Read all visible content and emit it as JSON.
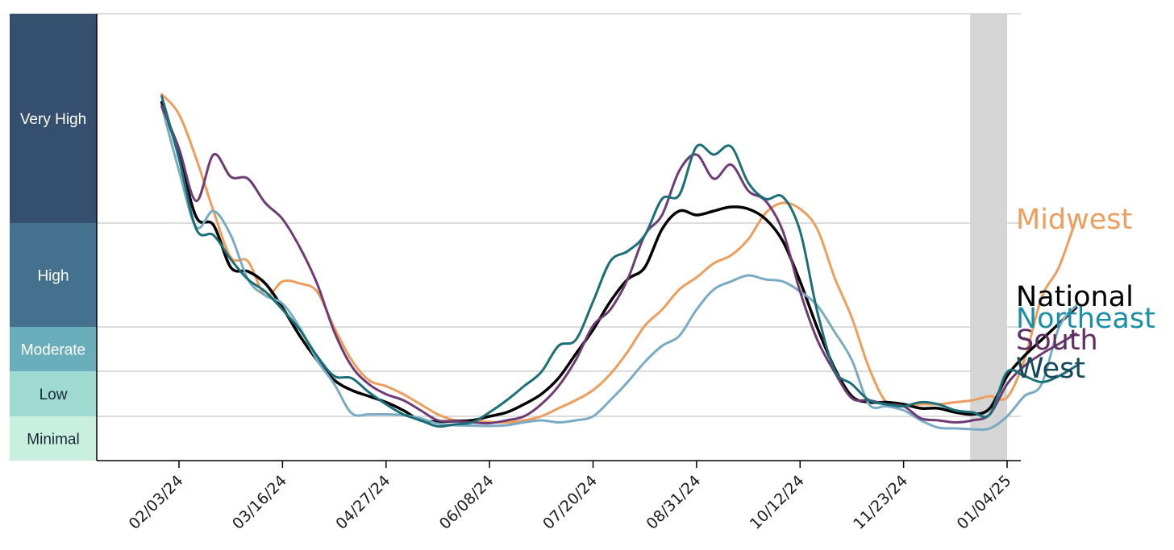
{
  "chart_data": {
    "type": "line",
    "title": "",
    "xlabel": "",
    "ylabel": "",
    "y_axis_ticks_shown": false,
    "levels": [
      {
        "label": "Very High",
        "color": "#34506e"
      },
      {
        "label": "High",
        "color": "#43718e"
      },
      {
        "label": "Moderate",
        "color": "#6aaebb"
      },
      {
        "label": "Low",
        "color": "#9fdad0"
      },
      {
        "label": "Minimal",
        "color": "#c9f0de"
      }
    ],
    "x_ticks": [
      "02/03/24",
      "03/16/24",
      "04/27/24",
      "06/08/24",
      "07/20/24",
      "08/31/24",
      "10/12/24",
      "11/23/24",
      "01/04/25"
    ],
    "shaded_period": [
      "12/19/24",
      "01/04/25"
    ],
    "shaded_color": "#d5d5d5",
    "series": [
      {
        "name": "Midwest",
        "color": "#ee9e5c",
        "width": 3,
        "values": [
          [
            -7,
            910
          ],
          [
            0,
            860
          ],
          [
            7,
            750
          ],
          [
            14,
            620
          ],
          [
            21,
            505
          ],
          [
            28,
            495
          ],
          [
            35,
            410
          ],
          [
            42,
            445
          ],
          [
            49,
            440
          ],
          [
            56,
            420
          ],
          [
            63,
            330
          ],
          [
            70,
            250
          ],
          [
            77,
            200
          ],
          [
            84,
            185
          ],
          [
            91,
            165
          ],
          [
            98,
            140
          ],
          [
            105,
            115
          ],
          [
            112,
            100
          ],
          [
            119,
            98
          ],
          [
            126,
            96
          ],
          [
            133,
            95
          ],
          [
            140,
            100
          ],
          [
            147,
            110
          ],
          [
            154,
            130
          ],
          [
            161,
            150
          ],
          [
            168,
            175
          ],
          [
            175,
            215
          ],
          [
            182,
            270
          ],
          [
            189,
            335
          ],
          [
            196,
            375
          ],
          [
            203,
            425
          ],
          [
            210,
            455
          ],
          [
            217,
            490
          ],
          [
            224,
            510
          ],
          [
            231,
            550
          ],
          [
            238,
            615
          ],
          [
            245,
            640
          ],
          [
            252,
            625
          ],
          [
            259,
            575
          ],
          [
            266,
            455
          ],
          [
            273,
            355
          ],
          [
            280,
            230
          ],
          [
            287,
            145
          ],
          [
            294,
            135
          ],
          [
            301,
            140
          ],
          [
            308,
            140
          ],
          [
            315,
            145
          ],
          [
            322,
            150
          ],
          [
            329,
            160
          ],
          [
            336,
            157
          ],
          [
            343,
            250
          ],
          [
            350,
            405
          ],
          [
            357,
            480
          ],
          [
            364,
            600
          ]
        ]
      },
      {
        "name": "National",
        "color": "#000000",
        "width": 3.5,
        "values": [
          [
            -7,
            890
          ],
          [
            0,
            760
          ],
          [
            7,
            605
          ],
          [
            14,
            585
          ],
          [
            21,
            480
          ],
          [
            28,
            470
          ],
          [
            35,
            440
          ],
          [
            42,
            380
          ],
          [
            49,
            310
          ],
          [
            56,
            250
          ],
          [
            63,
            200
          ],
          [
            70,
            175
          ],
          [
            77,
            160
          ],
          [
            84,
            145
          ],
          [
            91,
            125
          ],
          [
            98,
            100
          ],
          [
            105,
            97
          ],
          [
            112,
            98
          ],
          [
            119,
            100
          ],
          [
            126,
            110
          ],
          [
            133,
            120
          ],
          [
            140,
            140
          ],
          [
            147,
            165
          ],
          [
            154,
            205
          ],
          [
            161,
            265
          ],
          [
            168,
            325
          ],
          [
            175,
            395
          ],
          [
            182,
            450
          ],
          [
            189,
            480
          ],
          [
            196,
            575
          ],
          [
            203,
            620
          ],
          [
            210,
            610
          ],
          [
            217,
            620
          ],
          [
            224,
            630
          ],
          [
            231,
            625
          ],
          [
            238,
            600
          ],
          [
            245,
            545
          ],
          [
            252,
            445
          ],
          [
            259,
            330
          ],
          [
            266,
            230
          ],
          [
            273,
            160
          ],
          [
            280,
            145
          ],
          [
            287,
            145
          ],
          [
            294,
            140
          ],
          [
            301,
            130
          ],
          [
            308,
            130
          ],
          [
            315,
            120
          ],
          [
            322,
            115
          ],
          [
            329,
            130
          ],
          [
            336,
            210
          ],
          [
            343,
            260
          ],
          [
            350,
            300
          ],
          [
            357,
            340
          ],
          [
            364,
            380
          ]
        ]
      },
      {
        "name": "Northeast",
        "color": "#79abc4",
        "width": 3,
        "values": [
          [
            -7,
            880
          ],
          [
            0,
            720
          ],
          [
            7,
            580
          ],
          [
            14,
            620
          ],
          [
            21,
            560
          ],
          [
            28,
            450
          ],
          [
            35,
            410
          ],
          [
            42,
            390
          ],
          [
            49,
            330
          ],
          [
            56,
            250
          ],
          [
            63,
            190
          ],
          [
            70,
            118
          ],
          [
            77,
            115
          ],
          [
            84,
            115
          ],
          [
            91,
            113
          ],
          [
            98,
            105
          ],
          [
            105,
            92
          ],
          [
            112,
            88
          ],
          [
            119,
            87
          ],
          [
            126,
            86
          ],
          [
            133,
            88
          ],
          [
            140,
            95
          ],
          [
            147,
            100
          ],
          [
            154,
            95
          ],
          [
            161,
            100
          ],
          [
            168,
            110
          ],
          [
            175,
            150
          ],
          [
            182,
            195
          ],
          [
            189,
            245
          ],
          [
            196,
            285
          ],
          [
            203,
            310
          ],
          [
            210,
            375
          ],
          [
            217,
            425
          ],
          [
            224,
            445
          ],
          [
            231,
            460
          ],
          [
            238,
            450
          ],
          [
            245,
            445
          ],
          [
            252,
            420
          ],
          [
            259,
            385
          ],
          [
            266,
            320
          ],
          [
            273,
            250
          ],
          [
            280,
            140
          ],
          [
            287,
            135
          ],
          [
            294,
            125
          ],
          [
            301,
            100
          ],
          [
            308,
            82
          ],
          [
            315,
            80
          ],
          [
            322,
            78
          ],
          [
            329,
            80
          ],
          [
            336,
            110
          ],
          [
            343,
            160
          ],
          [
            350,
            190
          ],
          [
            357,
            330
          ],
          [
            364,
            385
          ]
        ]
      },
      {
        "name": "South",
        "color": "#6e3b75",
        "width": 3,
        "values": [
          [
            -7,
            880
          ],
          [
            0,
            775
          ],
          [
            7,
            645
          ],
          [
            14,
            760
          ],
          [
            21,
            705
          ],
          [
            28,
            700
          ],
          [
            35,
            640
          ],
          [
            42,
            600
          ],
          [
            49,
            530
          ],
          [
            56,
            440
          ],
          [
            63,
            320
          ],
          [
            70,
            235
          ],
          [
            77,
            190
          ],
          [
            84,
            165
          ],
          [
            91,
            150
          ],
          [
            98,
            125
          ],
          [
            105,
            100
          ],
          [
            112,
            98
          ],
          [
            119,
            95
          ],
          [
            126,
            93
          ],
          [
            133,
            100
          ],
          [
            140,
            110
          ],
          [
            147,
            140
          ],
          [
            154,
            185
          ],
          [
            161,
            250
          ],
          [
            168,
            335
          ],
          [
            175,
            375
          ],
          [
            182,
            450
          ],
          [
            189,
            560
          ],
          [
            196,
            610
          ],
          [
            203,
            720
          ],
          [
            210,
            760
          ],
          [
            217,
            700
          ],
          [
            224,
            735
          ],
          [
            231,
            670
          ],
          [
            238,
            645
          ],
          [
            245,
            570
          ],
          [
            252,
            420
          ],
          [
            259,
            300
          ],
          [
            266,
            220
          ],
          [
            273,
            155
          ],
          [
            280,
            150
          ],
          [
            287,
            140
          ],
          [
            294,
            135
          ],
          [
            301,
            105
          ],
          [
            308,
            100
          ],
          [
            315,
            95
          ],
          [
            322,
            100
          ],
          [
            329,
            115
          ],
          [
            336,
            190
          ],
          [
            343,
            235
          ],
          [
            350,
            265
          ],
          [
            357,
            290
          ],
          [
            364,
            315
          ]
        ]
      },
      {
        "name": "West",
        "color": "#1b6f78",
        "width": 3,
        "values": [
          [
            -7,
            905
          ],
          [
            0,
            750
          ],
          [
            7,
            575
          ],
          [
            14,
            560
          ],
          [
            21,
            500
          ],
          [
            28,
            450
          ],
          [
            35,
            420
          ],
          [
            42,
            375
          ],
          [
            49,
            325
          ],
          [
            56,
            260
          ],
          [
            63,
            210
          ],
          [
            70,
            205
          ],
          [
            77,
            170
          ],
          [
            84,
            140
          ],
          [
            91,
            115
          ],
          [
            98,
            100
          ],
          [
            105,
            85
          ],
          [
            112,
            90
          ],
          [
            119,
            95
          ],
          [
            126,
            120
          ],
          [
            133,
            150
          ],
          [
            140,
            185
          ],
          [
            147,
            220
          ],
          [
            154,
            285
          ],
          [
            161,
            300
          ],
          [
            168,
            395
          ],
          [
            175,
            495
          ],
          [
            182,
            520
          ],
          [
            189,
            560
          ],
          [
            196,
            650
          ],
          [
            203,
            660
          ],
          [
            210,
            780
          ],
          [
            217,
            760
          ],
          [
            224,
            780
          ],
          [
            231,
            690
          ],
          [
            238,
            650
          ],
          [
            245,
            655
          ],
          [
            252,
            570
          ],
          [
            259,
            370
          ],
          [
            266,
            225
          ],
          [
            273,
            190
          ],
          [
            280,
            150
          ],
          [
            287,
            140
          ],
          [
            294,
            135
          ],
          [
            301,
            145
          ],
          [
            308,
            140
          ],
          [
            315,
            125
          ],
          [
            322,
            120
          ],
          [
            329,
            115
          ],
          [
            336,
            220
          ],
          [
            343,
            210
          ],
          [
            350,
            195
          ],
          [
            357,
            210
          ],
          [
            364,
            235
          ]
        ]
      }
    ],
    "legend": [
      {
        "label": "Midwest",
        "color": "#ee9e5c",
        "anchor_value": 600
      },
      {
        "label": "National",
        "color": "#000000",
        "anchor_value": 408
      },
      {
        "label": "Northeast",
        "color": "#1a8fa6",
        "anchor_value": 354
      },
      {
        "label": "South",
        "color": "#5e2e63",
        "anchor_value": 300
      },
      {
        "label": "West",
        "color": "#14485a",
        "anchor_value": 230
      }
    ],
    "legend_placement": "right, at line ends"
  }
}
